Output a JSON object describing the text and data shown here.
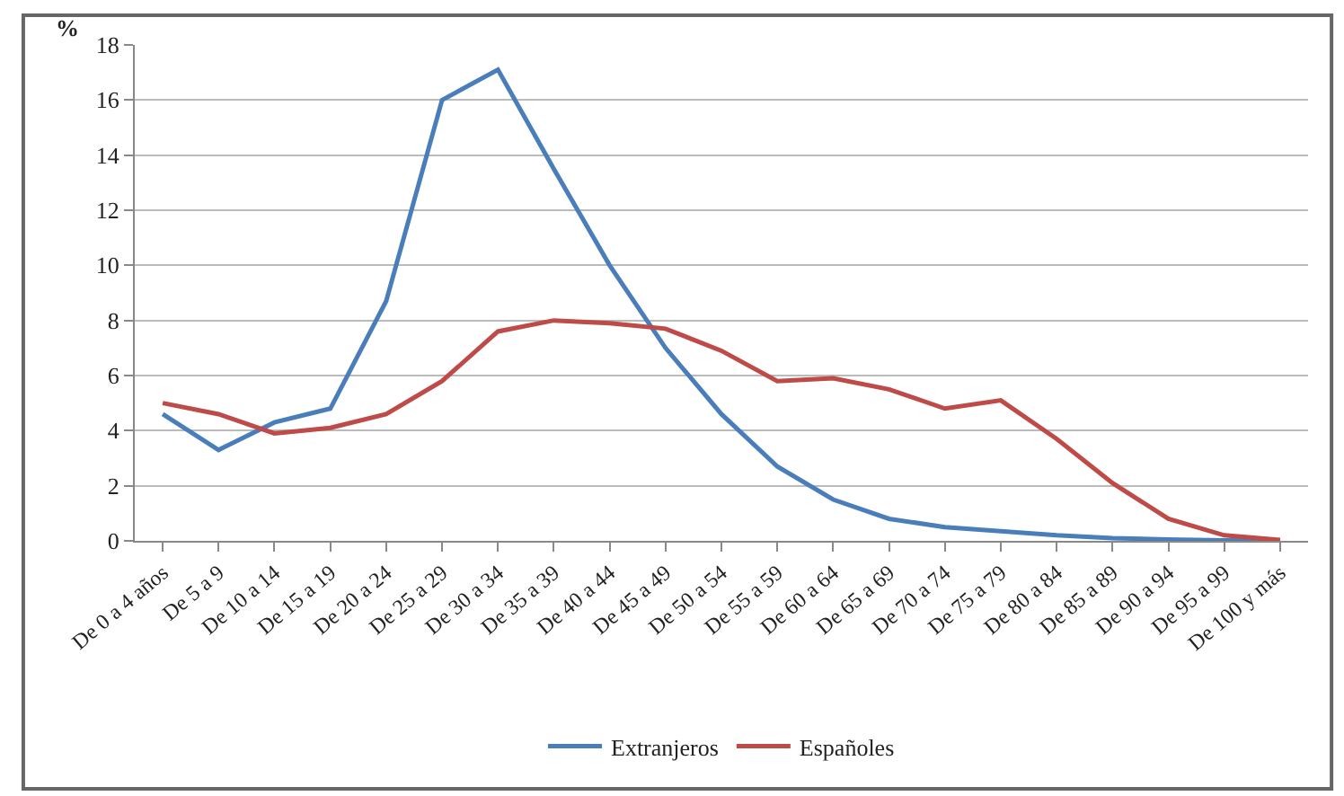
{
  "chart_data": {
    "type": "line",
    "ylabel": "%",
    "categories": [
      "De 0 a 4 años",
      "De 5 a 9",
      "De 10 a 14",
      "De 15 a 19",
      "De 20 a 24",
      "De 25 a 29",
      "De 30 a 34",
      "De 35 a 39",
      "De 40 a 44",
      "De 45 a 49",
      "De 50 a 54",
      "De 55 a 59",
      "De 60 a 64",
      "De 65 a 69",
      "De 70 a 74",
      "De 75 a 79",
      "De 80 a 84",
      "De 85 a 89",
      "De 90 a 94",
      "De 95 a 99",
      "De 100 y más"
    ],
    "series": [
      {
        "name": "Extranjeros",
        "color": "#4a7ebb",
        "values": [
          4.6,
          3.3,
          4.3,
          4.8,
          8.7,
          16.0,
          17.1,
          13.5,
          10.0,
          7.0,
          4.6,
          2.7,
          1.5,
          0.8,
          0.5,
          0.35,
          0.2,
          0.1,
          0.05,
          0.02,
          0.01
        ]
      },
      {
        "name": "Españoles",
        "color": "#be4b48",
        "values": [
          5.0,
          4.6,
          3.9,
          4.1,
          4.6,
          5.8,
          7.6,
          8.0,
          7.9,
          7.7,
          6.9,
          5.8,
          5.9,
          5.5,
          4.8,
          5.1,
          3.7,
          2.1,
          0.8,
          0.2,
          0.03
        ]
      }
    ],
    "ylim": [
      0,
      18
    ],
    "yticks": [
      0,
      2,
      4,
      6,
      8,
      10,
      12,
      14,
      16,
      18
    ],
    "grid": "y",
    "legend": "bottom",
    "marker": "none",
    "line_style": "solid"
  }
}
